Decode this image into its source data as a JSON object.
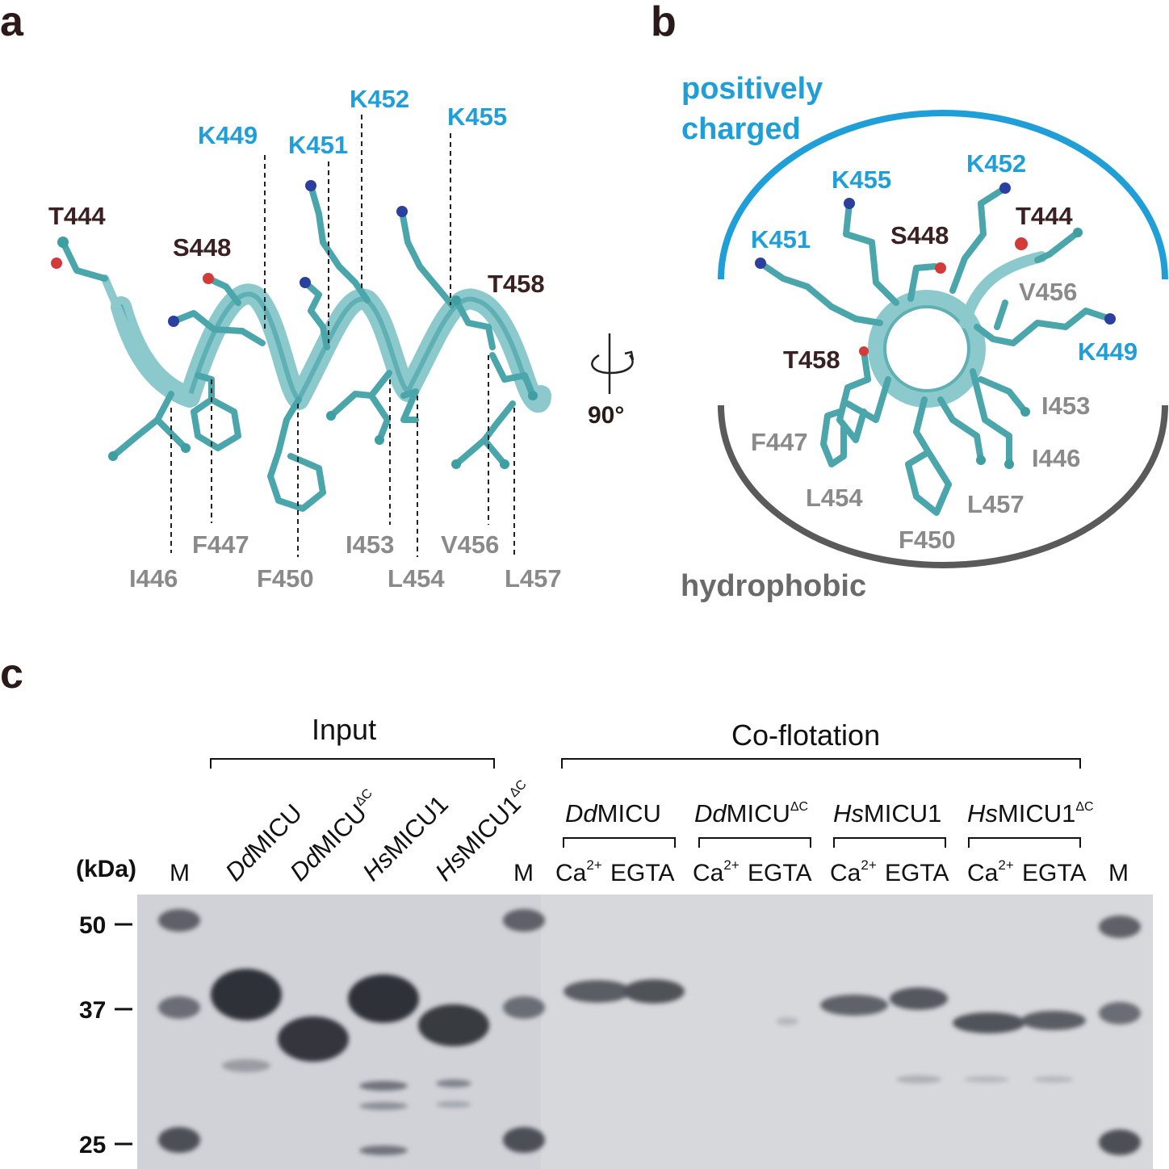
{
  "panels": [
    "a",
    "b",
    "c"
  ],
  "panel_a": {
    "positive_labels": [
      "K449",
      "K451",
      "K452",
      "K455"
    ],
    "polar_labels": [
      "T444",
      "S448",
      "T458"
    ],
    "hydrophobic_labels": [
      "I446",
      "F447",
      "F450",
      "I453",
      "L454",
      "V456",
      "L457"
    ]
  },
  "rotation": {
    "angle": "90°"
  },
  "panel_b": {
    "top_region": [
      "positively",
      "charged"
    ],
    "bottom_region": "hydrophobic",
    "positive_labels": [
      "K455",
      "K452",
      "K451",
      "K449"
    ],
    "polar_labels": [
      "S448",
      "T444",
      "T458"
    ],
    "hydrophobic_labels": [
      "V456",
      "I453",
      "I446",
      "F447",
      "L454",
      "L457",
      "F450"
    ]
  },
  "panel_c": {
    "input_heading": "Input",
    "coflotation_heading": "Co-flotation",
    "kda_label": "(kDa)",
    "marker_label": "M",
    "input_samples": [
      {
        "prefix": "Dd",
        "name": "MICU",
        "sup": ""
      },
      {
        "prefix": "Dd",
        "name": "MICU",
        "sup": "ΔC"
      },
      {
        "prefix": "Hs",
        "name": "MICU1",
        "sup": ""
      },
      {
        "prefix": "Hs",
        "name": "MICU1",
        "sup": "ΔC"
      }
    ],
    "coflot_samples": [
      {
        "prefix": "Dd",
        "name": "MICU",
        "sup": ""
      },
      {
        "prefix": "Dd",
        "name": "MICU",
        "sup": "ΔC"
      },
      {
        "prefix": "Hs",
        "name": "MICU1",
        "sup": ""
      },
      {
        "prefix": "Hs",
        "name": "MICU1",
        "sup": "ΔC"
      }
    ],
    "condition_labels": [
      "Ca2+",
      "EGTA"
    ],
    "molecular_weights": [
      "50",
      "37",
      "25"
    ]
  }
}
